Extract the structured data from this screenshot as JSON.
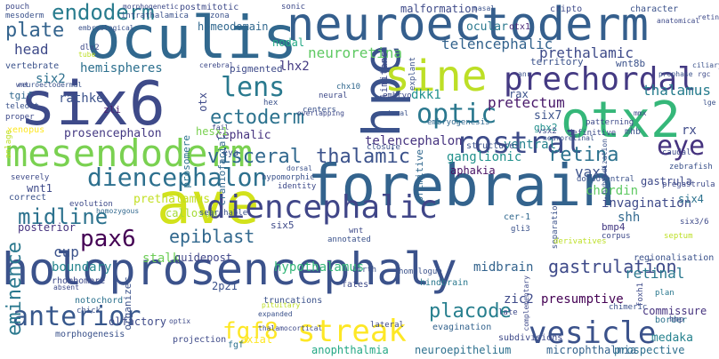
{
  "words": [
    {
      "text": "holoprosencephaly",
      "color": "#3b528b"
    },
    {
      "text": "forebrain",
      "color": "#33638d"
    },
    {
      "text": "neuroectoderm",
      "color": "#355f8d"
    },
    {
      "text": "six6",
      "color": "#3e4a89"
    },
    {
      "text": "oculis",
      "color": "#31688e"
    },
    {
      "text": "ave",
      "color": "#d2e21b"
    },
    {
      "text": "mesendoderm",
      "color": "#7ad151"
    },
    {
      "text": "hpe",
      "color": "#3b528b"
    },
    {
      "text": "otx2",
      "color": "#35b779"
    },
    {
      "text": "sine",
      "color": "#bddf26"
    },
    {
      "text": "prechordal",
      "color": "#443a83"
    },
    {
      "text": "diencephalic",
      "color": "#404688"
    },
    {
      "text": "diencephalon",
      "color": "#2d708e"
    },
    {
      "text": "rostral",
      "color": "#3e4c8a"
    },
    {
      "text": "visceral",
      "color": "#31688e"
    },
    {
      "text": "thalamic",
      "color": "#3b528b"
    },
    {
      "text": "optic",
      "color": "#2a788e"
    },
    {
      "text": "lens",
      "color": "#29798e"
    },
    {
      "text": "eye",
      "color": "#46337f"
    },
    {
      "text": "retina",
      "color": "#2c728e"
    },
    {
      "text": "endoderm",
      "color": "#287c8e"
    },
    {
      "text": "plate",
      "color": "#33638d"
    },
    {
      "text": "midline",
      "color": "#2c728e"
    },
    {
      "text": "anterior",
      "color": "#38588c"
    },
    {
      "text": "streak",
      "color": "#fde725"
    },
    {
      "text": "vesicle",
      "color": "#3b528b"
    },
    {
      "text": "placode",
      "color": "#277f8e"
    },
    {
      "text": "gastrulation",
      "color": "#3e4a89"
    },
    {
      "text": "pax6",
      "color": "#440154"
    },
    {
      "text": "fgf8",
      "color": "#fde725"
    },
    {
      "text": "epiblast",
      "color": "#31688e"
    },
    {
      "text": "ectoderm",
      "color": "#2c728e"
    },
    {
      "text": "neuroretina",
      "color": "#5ec962"
    },
    {
      "text": "telencephalic",
      "color": "#33638d"
    },
    {
      "text": "prethalamic",
      "color": "#3e4a89"
    },
    {
      "text": "hemispheres",
      "color": "#2d708e"
    },
    {
      "text": "pretectum",
      "color": "#48186a"
    },
    {
      "text": "thalamus",
      "color": "#287d8e"
    },
    {
      "text": "eminence",
      "color": "#2a788e"
    },
    {
      "text": "telencephalon",
      "color": "#46337f"
    },
    {
      "text": "hypothalamus",
      "color": "#35b779"
    },
    {
      "text": "midbrain",
      "color": "#33638d"
    },
    {
      "text": "cup",
      "color": "#3b528b"
    },
    {
      "text": "boundary",
      "color": "#25858e"
    },
    {
      "text": "stalk",
      "color": "#6ece58"
    },
    {
      "text": "guidepost",
      "color": "#404688"
    },
    {
      "text": "presumptive",
      "color": "#440154"
    },
    {
      "text": "retinal",
      "color": "#2a788e"
    },
    {
      "text": "zic2",
      "color": "#3e4a89"
    },
    {
      "text": "dkk1",
      "color": "#21918c"
    },
    {
      "text": "vax1",
      "color": "#3b528b"
    },
    {
      "text": "lhx2",
      "color": "#443a83"
    },
    {
      "text": "head",
      "color": "#3e4a89"
    },
    {
      "text": "six2",
      "color": "#2d708e"
    },
    {
      "text": "rathke",
      "color": "#3b528b"
    },
    {
      "text": "ventral",
      "color": "#26828e"
    },
    {
      "text": "ganglionic",
      "color": "#21918c"
    },
    {
      "text": "aphakia",
      "color": "#471063"
    },
    {
      "text": "prosencephalon",
      "color": "#443983"
    },
    {
      "text": "chordin",
      "color": "#5ec962"
    },
    {
      "text": "invagination",
      "color": "#3e4a89"
    },
    {
      "text": "shh",
      "color": "#31688e"
    },
    {
      "text": "six4",
      "color": "#2c728e"
    },
    {
      "text": "wnt1",
      "color": "#3e4a89"
    },
    {
      "text": "posterior",
      "color": "#46337f"
    },
    {
      "text": "prethalamus",
      "color": "#c2df23"
    },
    {
      "text": "callosum",
      "color": "#a5db36"
    },
    {
      "text": "nodal",
      "color": "#22a884"
    },
    {
      "text": "homeodomain",
      "color": "#31688e"
    },
    {
      "text": "malformation",
      "color": "#3e4a89"
    },
    {
      "text": "ocular",
      "color": "#2a788e"
    },
    {
      "text": "pigmented",
      "color": "#3e4a89"
    },
    {
      "text": "territory",
      "color": "#3b528b"
    },
    {
      "text": "wnt8b",
      "color": "#3b528b"
    },
    {
      "text": "cephalic",
      "color": "#46337f"
    },
    {
      "text": "hesx1",
      "color": "#7ad151"
    },
    {
      "text": "anophthalmia",
      "color": "#22a884"
    },
    {
      "text": "microphthalmia",
      "color": "#33638d"
    },
    {
      "text": "neuroepithelium",
      "color": "#2d708e"
    },
    {
      "text": "prospective",
      "color": "#2d708e"
    },
    {
      "text": "medaka",
      "color": "#26828e"
    },
    {
      "text": "axial",
      "color": "#fde725"
    },
    {
      "text": "olfactory",
      "color": "#3e4a89"
    },
    {
      "text": "morphogenesis",
      "color": "#3b528b"
    },
    {
      "text": "commissure",
      "color": "#46337f"
    },
    {
      "text": "gastrula",
      "color": "#3e4a89"
    },
    {
      "text": "rx",
      "color": "#3e4a89"
    },
    {
      "text": "gbx2",
      "color": "#21918c"
    },
    {
      "text": "six7",
      "color": "#3b528b"
    },
    {
      "text": "bmp4",
      "color": "#443a83"
    },
    {
      "text": "six5",
      "color": "#3e4a89"
    },
    {
      "text": "cer-1",
      "color": "#31688e"
    },
    {
      "text": "zli",
      "color": "#481f70"
    },
    {
      "text": "tgif",
      "color": "#31688e"
    },
    {
      "text": "vertebrate",
      "color": "#3b528b"
    },
    {
      "text": "postmitotic",
      "color": "#3e4a89"
    },
    {
      "text": "intrathalamica",
      "color": "#3b528b"
    },
    {
      "text": "cripto",
      "color": "#3e4a89"
    },
    {
      "text": "character",
      "color": "#3b528b"
    },
    {
      "text": "otx1",
      "color": "#482878"
    },
    {
      "text": "fates",
      "color": "#3e4a89"
    },
    {
      "text": "hindbrain",
      "color": "#2a788e"
    },
    {
      "text": "fgf",
      "color": "#2c728e"
    },
    {
      "text": "2p21",
      "color": "#3b528b"
    },
    {
      "text": "truncations",
      "color": "#3b528b"
    },
    {
      "text": "projection",
      "color": "#3e4a89"
    },
    {
      "text": "organizer",
      "color": "#3b528b"
    },
    {
      "text": "rhombomere",
      "color": "#3e4a89"
    },
    {
      "text": "notochord",
      "color": "#2c728e"
    },
    {
      "text": "evagination",
      "color": "#33638d"
    },
    {
      "text": "subdivisions",
      "color": "#3e4a89"
    },
    {
      "text": "regionalisation",
      "color": "#3b528b"
    },
    {
      "text": "foxh1",
      "color": "#3e4a89"
    },
    {
      "text": "plan",
      "color": "#2a788e"
    },
    {
      "text": "border",
      "color": "#2c728e"
    },
    {
      "text": "late",
      "color": "#3e4a89"
    },
    {
      "text": "limitans",
      "color": "#3e4a89"
    },
    {
      "text": "primitive",
      "color": "#31688e"
    },
    {
      "text": "explant",
      "color": "#3b528b"
    },
    {
      "text": "embryo",
      "color": "#3e4a89"
    },
    {
      "text": "craniofacial",
      "color": "#31688e"
    },
    {
      "text": "prosomere",
      "color": "#2c728e"
    },
    {
      "text": "otx",
      "color": "#3e4a89"
    },
    {
      "text": "rax",
      "color": "#3b528b"
    },
    {
      "text": "vsx2",
      "color": "#3e4a89"
    },
    {
      "text": "centers",
      "color": "#3b528b"
    },
    {
      "text": "neural",
      "color": "#3e4a89"
    },
    {
      "text": "chx10",
      "color": "#31688e"
    },
    {
      "text": "hex",
      "color": "#3b528b"
    },
    {
      "text": "eya",
      "color": "#3b528b"
    },
    {
      "text": "closure",
      "color": "#3b528b"
    },
    {
      "text": "structures",
      "color": "#3b528b"
    },
    {
      "text": "embryogenesis",
      "color": "#31688e"
    },
    {
      "text": "identity",
      "color": "#3e4a89"
    },
    {
      "text": "hypomorphic",
      "color": "#3b528b"
    },
    {
      "text": "definitive",
      "color": "#3e4a89"
    },
    {
      "text": "patterning",
      "color": "#3e4a89"
    },
    {
      "text": "mhb",
      "color": "#3b528b"
    },
    {
      "text": "caudal",
      "color": "#3e4a89"
    },
    {
      "text": "zebrafish",
      "color": "#3b528b"
    },
    {
      "text": "pregastrula",
      "color": "#3e4a89"
    },
    {
      "text": "dorsoventral",
      "color": "#3b528b"
    },
    {
      "text": "xenopus",
      "color": "#fde725"
    },
    {
      "text": "severely",
      "color": "#3e4a89"
    },
    {
      "text": "correct",
      "color": "#3b528b"
    },
    {
      "text": "evolution",
      "color": "#3e4a89"
    },
    {
      "text": "searchable",
      "color": "#3b528b"
    },
    {
      "text": "homozygous",
      "color": "#31688e"
    },
    {
      "text": "separation",
      "color": "#3b528b"
    },
    {
      "text": "corpus",
      "color": "#3e4a89"
    },
    {
      "text": "septum",
      "color": "#bddf26"
    },
    {
      "text": "six3/6",
      "color": "#3e4a89"
    },
    {
      "text": "gli3",
      "color": "#3b528b"
    },
    {
      "text": "derivatives",
      "color": "#bddf26"
    },
    {
      "text": "homologue",
      "color": "#3b528b"
    },
    {
      "text": "wnt",
      "color": "#3e4a89"
    },
    {
      "text": "annotated",
      "color": "#3b528b"
    },
    {
      "text": "birth",
      "color": "#3b528b"
    },
    {
      "text": "absent",
      "color": "#3e4a89"
    },
    {
      "text": "anlage",
      "color": "#bddf26"
    },
    {
      "text": "chick",
      "color": "#3b528b"
    },
    {
      "text": "lateral",
      "color": "#3e4a89"
    },
    {
      "text": "chimeric",
      "color": "#3b528b"
    },
    {
      "text": "hmp",
      "color": "#3e4a89"
    },
    {
      "text": "pouch",
      "color": "#3e4a89"
    },
    {
      "text": "mesoderm",
      "color": "#3b528b"
    },
    {
      "text": "morphogenetic",
      "color": "#3e4a89"
    },
    {
      "text": "zona",
      "color": "#3b528b"
    },
    {
      "text": "sonic",
      "color": "#3e4a89"
    },
    {
      "text": "nasal",
      "color": "#3b528b"
    },
    {
      "text": "dlx2",
      "color": "#3e4a89"
    },
    {
      "text": "tube",
      "color": "#bddf26"
    },
    {
      "text": "teleost",
      "color": "#3b528b"
    },
    {
      "text": "proper",
      "color": "#3e4a89"
    },
    {
      "text": "ciliary",
      "color": "#3b528b"
    },
    {
      "text": "rgc",
      "color": "#3e4a89"
    },
    {
      "text": "lge",
      "color": "#3b528b"
    },
    {
      "text": "fail",
      "color": "#3e4a89"
    },
    {
      "text": "dorsal",
      "color": "#3b528b"
    },
    {
      "text": "cerebral",
      "color": "#3e4a89"
    },
    {
      "text": "visual",
      "color": "#3b528b"
    },
    {
      "text": "overlapping",
      "color": "#3e4a89"
    },
    {
      "text": "neuroretinal",
      "color": "#3b528b"
    },
    {
      "text": "pituitary",
      "color": "#bddf26"
    },
    {
      "text": "optix",
      "color": "#3e4a89"
    },
    {
      "text": "expanded",
      "color": "#3b528b"
    },
    {
      "text": "complementary",
      "color": "#3e4a89"
    },
    {
      "text": "embryological",
      "color": "#3b528b"
    },
    {
      "text": "anatomical",
      "color": "#3e4a89"
    },
    {
      "text": "hybridization",
      "color": "#3b528b"
    },
    {
      "text": "thalamocortical",
      "color": "#3e4a89"
    },
    {
      "text": "neuroectodermal",
      "color": "#3b528b"
    },
    {
      "text": "retinoid",
      "color": "#3e4a89"
    },
    {
      "text": "anr",
      "color": "#3b528b"
    },
    {
      "text": "mmx",
      "color": "#3e4a89"
    },
    {
      "text": "prophase",
      "color": "#3b528b"
    },
    {
      "text": "wnt",
      "color": "#3e4a89"
    },
    {
      "text": "neurectoderm",
      "color": "#bddf26"
    }
  ]
}
